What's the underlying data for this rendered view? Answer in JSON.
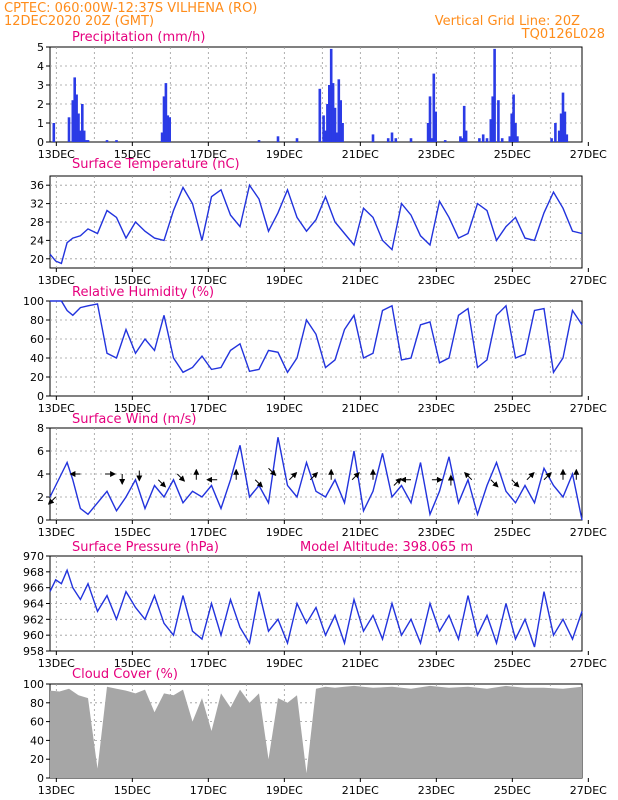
{
  "header": {
    "station": "CPTEC:   060:00W-12:37S   VILHENA (RO)",
    "run": "12DEC2020 20Z (GMT)",
    "grid_note": "Vertical Grid Line: 20Z",
    "code": "TQ0126L028"
  },
  "x_labels": [
    "13DEC",
    "15DEC",
    "17DEC",
    "19DEC",
    "21DEC",
    "23DEC",
    "25DEC",
    "27DEC"
  ],
  "colors": {
    "line": "#2233dd",
    "bar": "#2b3be6",
    "cloud": "#a6a6a6",
    "title": "#e6007e",
    "header": "#ff8c1a"
  },
  "chart_data": [
    {
      "type": "bar",
      "title": "Precipitation (mm/h)",
      "ylim": [
        0,
        5
      ],
      "yticks": [
        "0",
        "1",
        "2",
        "3",
        "4",
        "5"
      ],
      "x_days": [
        0.1,
        0.5,
        0.6,
        0.65,
        0.7,
        0.75,
        0.8,
        0.85,
        0.9,
        0.95,
        1.0,
        1.5,
        1.75,
        2.95,
        3.0,
        3.05,
        3.1,
        3.15,
        5.5,
        6.0,
        6.5,
        7.1,
        7.2,
        7.25,
        7.3,
        7.35,
        7.4,
        7.45,
        7.5,
        7.55,
        7.6,
        7.65,
        7.7,
        8.5,
        8.9,
        9.0,
        9.1,
        9.5,
        9.95,
        10.0,
        10.05,
        10.1,
        10.15,
        10.4,
        10.8,
        10.85,
        10.9,
        10.95,
        11.3,
        11.4,
        11.5,
        11.6,
        11.65,
        11.7,
        11.8,
        11.9,
        12.1,
        12.15,
        12.2,
        12.25,
        12.3,
        13.2,
        13.3,
        13.4,
        13.45,
        13.5,
        13.55,
        13.6
      ],
      "values": [
        1.0,
        1.3,
        2.2,
        3.4,
        2.5,
        1.5,
        0.6,
        2.0,
        0.6,
        0.1,
        0.1,
        0.1,
        0.1,
        0.5,
        2.4,
        3.1,
        1.4,
        1.3,
        0.1,
        0.3,
        0.2,
        2.8,
        1.4,
        0.6,
        2.0,
        3.0,
        4.9,
        3.1,
        1.8,
        0.5,
        3.3,
        2.2,
        1.0,
        0.4,
        0.2,
        0.5,
        0.2,
        0.2,
        1.0,
        2.4,
        0.2,
        3.6,
        1.6,
        0.1,
        0.3,
        0.2,
        1.9,
        0.6,
        0.2,
        0.4,
        0.2,
        1.2,
        2.4,
        4.9,
        2.2,
        0.2,
        0.3,
        1.5,
        2.5,
        1.0,
        0.3,
        0.2,
        1.0,
        0.6,
        1.5,
        2.6,
        1.6,
        0.4
      ]
    },
    {
      "type": "line",
      "title": "Surface Temperature (nC)",
      "ylim": [
        18,
        38
      ],
      "yticks": [
        "20",
        "24",
        "28",
        "32",
        "36"
      ],
      "x_days": [
        0,
        0.15,
        0.3,
        0.45,
        0.6,
        0.8,
        1.0,
        1.25,
        1.5,
        1.75,
        2.0,
        2.25,
        2.5,
        2.75,
        3.0,
        3.25,
        3.5,
        3.75,
        4.0,
        4.25,
        4.5,
        4.75,
        5.0,
        5.25,
        5.5,
        5.75,
        6.0,
        6.25,
        6.5,
        6.75,
        7.0,
        7.25,
        7.5,
        7.75,
        8.0,
        8.25,
        8.5,
        8.75,
        9.0,
        9.25,
        9.5,
        9.75,
        10.0,
        10.25,
        10.5,
        10.75,
        11.0,
        11.25,
        11.5,
        11.75,
        12.0,
        12.25,
        12.5,
        12.75,
        13.0,
        13.25,
        13.5,
        13.75,
        14.0
      ],
      "values": [
        21.0,
        19.5,
        19.0,
        23.5,
        24.5,
        25.0,
        26.5,
        25.5,
        30.5,
        29.0,
        24.5,
        28.0,
        26.0,
        24.5,
        24.0,
        30.5,
        35.5,
        32.0,
        24.0,
        33.5,
        35.0,
        29.5,
        27.0,
        36.0,
        33.0,
        26.0,
        30.0,
        35.0,
        29.0,
        26.0,
        28.5,
        33.5,
        28.0,
        25.5,
        23.0,
        31.0,
        29.0,
        24.0,
        22.0,
        32.0,
        29.5,
        25.0,
        23.0,
        32.5,
        29.0,
        24.5,
        25.5,
        32.0,
        30.5,
        24.0,
        27.0,
        29.0,
        24.5,
        24.0,
        30.0,
        34.5,
        31.0,
        26.0,
        25.5
      ]
    },
    {
      "type": "line",
      "title": "Relative Humidity (%)",
      "ylim": [
        0,
        100
      ],
      "yticks": [
        "0",
        "20",
        "40",
        "60",
        "80",
        "100"
      ],
      "x_days": [
        0,
        0.15,
        0.3,
        0.45,
        0.6,
        0.8,
        1.0,
        1.25,
        1.5,
        1.75,
        2.0,
        2.25,
        2.5,
        2.75,
        3.0,
        3.25,
        3.5,
        3.75,
        4.0,
        4.25,
        4.5,
        4.75,
        5.0,
        5.25,
        5.5,
        5.75,
        6.0,
        6.25,
        6.5,
        6.75,
        7.0,
        7.25,
        7.5,
        7.75,
        8.0,
        8.25,
        8.5,
        8.75,
        9.0,
        9.25,
        9.5,
        9.75,
        10.0,
        10.25,
        10.5,
        10.75,
        11.0,
        11.25,
        11.5,
        11.75,
        12.0,
        12.25,
        12.5,
        12.75,
        13.0,
        13.25,
        13.5,
        13.75,
        14.0
      ],
      "values": [
        100,
        100,
        100,
        90,
        85,
        93,
        95,
        97,
        45,
        40,
        70,
        45,
        60,
        48,
        85,
        40,
        25,
        30,
        42,
        28,
        30,
        48,
        55,
        26,
        28,
        48,
        46,
        25,
        40,
        80,
        65,
        30,
        38,
        70,
        85,
        40,
        45,
        90,
        95,
        38,
        40,
        75,
        78,
        35,
        40,
        85,
        92,
        30,
        38,
        85,
        95,
        40,
        44,
        90,
        92,
        25,
        40,
        90,
        75
      ]
    },
    {
      "type": "line",
      "title": "Surface Wind (m/s)",
      "ylim": [
        0,
        8
      ],
      "yticks": [
        "0",
        "2",
        "4",
        "6",
        "8"
      ],
      "x_days": [
        0,
        0.15,
        0.3,
        0.45,
        0.6,
        0.8,
        1.0,
        1.25,
        1.5,
        1.75,
        2.0,
        2.25,
        2.5,
        2.75,
        3.0,
        3.25,
        3.5,
        3.75,
        4.0,
        4.25,
        4.5,
        4.75,
        5.0,
        5.25,
        5.5,
        5.75,
        6.0,
        6.25,
        6.5,
        6.75,
        7.0,
        7.25,
        7.5,
        7.75,
        8.0,
        8.25,
        8.5,
        8.75,
        9.0,
        9.25,
        9.5,
        9.75,
        10.0,
        10.25,
        10.5,
        10.75,
        11.0,
        11.25,
        11.5,
        11.75,
        12.0,
        12.25,
        12.5,
        12.75,
        13.0,
        13.25,
        13.5,
        13.75,
        14.0
      ],
      "values": [
        2.0,
        3.0,
        4.0,
        5.0,
        3.5,
        1.0,
        0.5,
        1.5,
        2.5,
        0.8,
        2.0,
        3.5,
        1.0,
        3.0,
        2.0,
        3.5,
        1.5,
        2.5,
        2.0,
        3.0,
        1.0,
        3.5,
        6.5,
        2.0,
        3.0,
        1.5,
        7.2,
        3.0,
        2.0,
        5.0,
        2.5,
        2.0,
        3.5,
        1.5,
        6.0,
        0.8,
        2.5,
        5.8,
        2.0,
        3.0,
        1.5,
        5.0,
        0.5,
        2.5,
        5.5,
        1.5,
        3.5,
        0.5,
        3.0,
        5.0,
        2.5,
        1.5,
        3.0,
        1.5,
        4.5,
        3.0,
        2.0,
        4.0,
        0.0
      ]
    },
    {
      "type": "line",
      "title": "Surface Pressure (hPa)",
      "annotation": "Model Altitude: 398.065 m",
      "ylim": [
        958,
        970
      ],
      "yticks": [
        "958",
        "960",
        "962",
        "964",
        "966",
        "968",
        "970"
      ],
      "x_days": [
        0,
        0.15,
        0.3,
        0.45,
        0.6,
        0.8,
        1.0,
        1.25,
        1.5,
        1.75,
        2.0,
        2.25,
        2.5,
        2.75,
        3.0,
        3.25,
        3.5,
        3.75,
        4.0,
        4.25,
        4.5,
        4.75,
        5.0,
        5.25,
        5.5,
        5.75,
        6.0,
        6.25,
        6.5,
        6.75,
        7.0,
        7.25,
        7.5,
        7.75,
        8.0,
        8.25,
        8.5,
        8.75,
        9.0,
        9.25,
        9.5,
        9.75,
        10.0,
        10.25,
        10.5,
        10.75,
        11.0,
        11.25,
        11.5,
        11.75,
        12.0,
        12.25,
        12.5,
        12.75,
        13.0,
        13.25,
        13.5,
        13.75,
        14.0
      ],
      "values": [
        965.5,
        967.0,
        966.5,
        968.2,
        966.0,
        964.5,
        966.5,
        963.0,
        965.0,
        962.0,
        965.5,
        963.5,
        962.0,
        965.0,
        961.5,
        960.0,
        965.0,
        960.5,
        959.5,
        964.0,
        960.0,
        964.5,
        961.0,
        959.0,
        965.5,
        960.5,
        962.0,
        959.0,
        964.0,
        961.5,
        963.5,
        960.0,
        962.5,
        959.0,
        964.5,
        960.5,
        962.5,
        959.5,
        964.0,
        960.0,
        962.0,
        959.0,
        964.0,
        960.5,
        962.5,
        959.5,
        965.0,
        960.0,
        962.5,
        959.0,
        964.0,
        959.5,
        962.0,
        958.5,
        965.5,
        960.0,
        962.0,
        959.5,
        963.0
      ]
    },
    {
      "type": "area",
      "title": "Cloud Cover (%)",
      "ylim": [
        0,
        100
      ],
      "yticks": [
        "0",
        "20",
        "40",
        "60",
        "80",
        "100"
      ],
      "x_days": [
        0,
        0.25,
        0.5,
        0.75,
        1.0,
        1.25,
        1.5,
        1.75,
        2.0,
        2.25,
        2.5,
        2.75,
        3.0,
        3.25,
        3.5,
        3.75,
        4.0,
        4.25,
        4.5,
        4.75,
        5.0,
        5.25,
        5.5,
        5.75,
        6.0,
        6.25,
        6.5,
        6.75,
        7.0,
        7.25,
        7.5,
        7.75,
        8.0,
        8.5,
        9.0,
        9.5,
        10.0,
        10.5,
        11.0,
        11.5,
        12.0,
        12.5,
        13.0,
        13.5,
        14.0
      ],
      "values": [
        93,
        92,
        95,
        88,
        85,
        10,
        97,
        95,
        93,
        90,
        94,
        70,
        90,
        88,
        94,
        60,
        85,
        50,
        90,
        75,
        94,
        80,
        90,
        20,
        85,
        80,
        88,
        5,
        95,
        97,
        96,
        97,
        98,
        96,
        97,
        95,
        98,
        96,
        97,
        95,
        98,
        96,
        96,
        95,
        97
      ]
    }
  ],
  "wind_arrows": [
    {
      "x_day": 0.15,
      "y": 2.0,
      "dx": -1,
      "dy": 1
    },
    {
      "x_day": 0.8,
      "y": 4.0,
      "dx": -1,
      "dy": 0
    },
    {
      "x_day": 1.45,
      "y": 4.0,
      "dx": 1,
      "dy": 0
    },
    {
      "x_day": 1.9,
      "y": 4.0,
      "dx": 0,
      "dy": 1
    },
    {
      "x_day": 2.35,
      "y": 4.3,
      "dx": 0,
      "dy": 1
    },
    {
      "x_day": 2.85,
      "y": 3.5,
      "dx": 1,
      "dy": 1
    },
    {
      "x_day": 3.35,
      "y": 4.0,
      "dx": 1,
      "dy": 1
    },
    {
      "x_day": 3.85,
      "y": 3.5,
      "dx": 0,
      "dy": -1
    },
    {
      "x_day": 4.4,
      "y": 3.5,
      "dx": -1,
      "dy": 0
    },
    {
      "x_day": 4.9,
      "y": 3.5,
      "dx": 0,
      "dy": -1
    },
    {
      "x_day": 5.4,
      "y": 3.5,
      "dx": 1,
      "dy": 1
    },
    {
      "x_day": 5.75,
      "y": 4.5,
      "dx": 1,
      "dy": 1
    },
    {
      "x_day": 6.3,
      "y": 3.5,
      "dx": 1,
      "dy": -1
    },
    {
      "x_day": 6.85,
      "y": 3.5,
      "dx": 1,
      "dy": -1
    },
    {
      "x_day": 7.4,
      "y": 3.5,
      "dx": 0,
      "dy": -1
    },
    {
      "x_day": 7.95,
      "y": 3.5,
      "dx": 1,
      "dy": -1
    },
    {
      "x_day": 8.5,
      "y": 3.5,
      "dx": 0,
      "dy": -1
    },
    {
      "x_day": 9.05,
      "y": 3.0,
      "dx": 1,
      "dy": -1
    },
    {
      "x_day": 9.5,
      "y": 3.5,
      "dx": -1,
      "dy": 0
    },
    {
      "x_day": 10.05,
      "y": 3.5,
      "dx": 1,
      "dy": 0
    },
    {
      "x_day": 10.55,
      "y": 3.0,
      "dx": 0,
      "dy": -1
    },
    {
      "x_day": 11.1,
      "y": 3.5,
      "dx": -1,
      "dy": -1
    },
    {
      "x_day": 11.6,
      "y": 3.5,
      "dx": 1,
      "dy": 1
    },
    {
      "x_day": 12.15,
      "y": 3.5,
      "dx": 1,
      "dy": 1
    },
    {
      "x_day": 12.55,
      "y": 3.5,
      "dx": 1,
      "dy": -1
    },
    {
      "x_day": 13.0,
      "y": 3.5,
      "dx": 1,
      "dy": -1
    },
    {
      "x_day": 13.5,
      "y": 3.5,
      "dx": 0,
      "dy": -1
    },
    {
      "x_day": 13.85,
      "y": 3.5,
      "dx": 0,
      "dy": -1
    }
  ]
}
